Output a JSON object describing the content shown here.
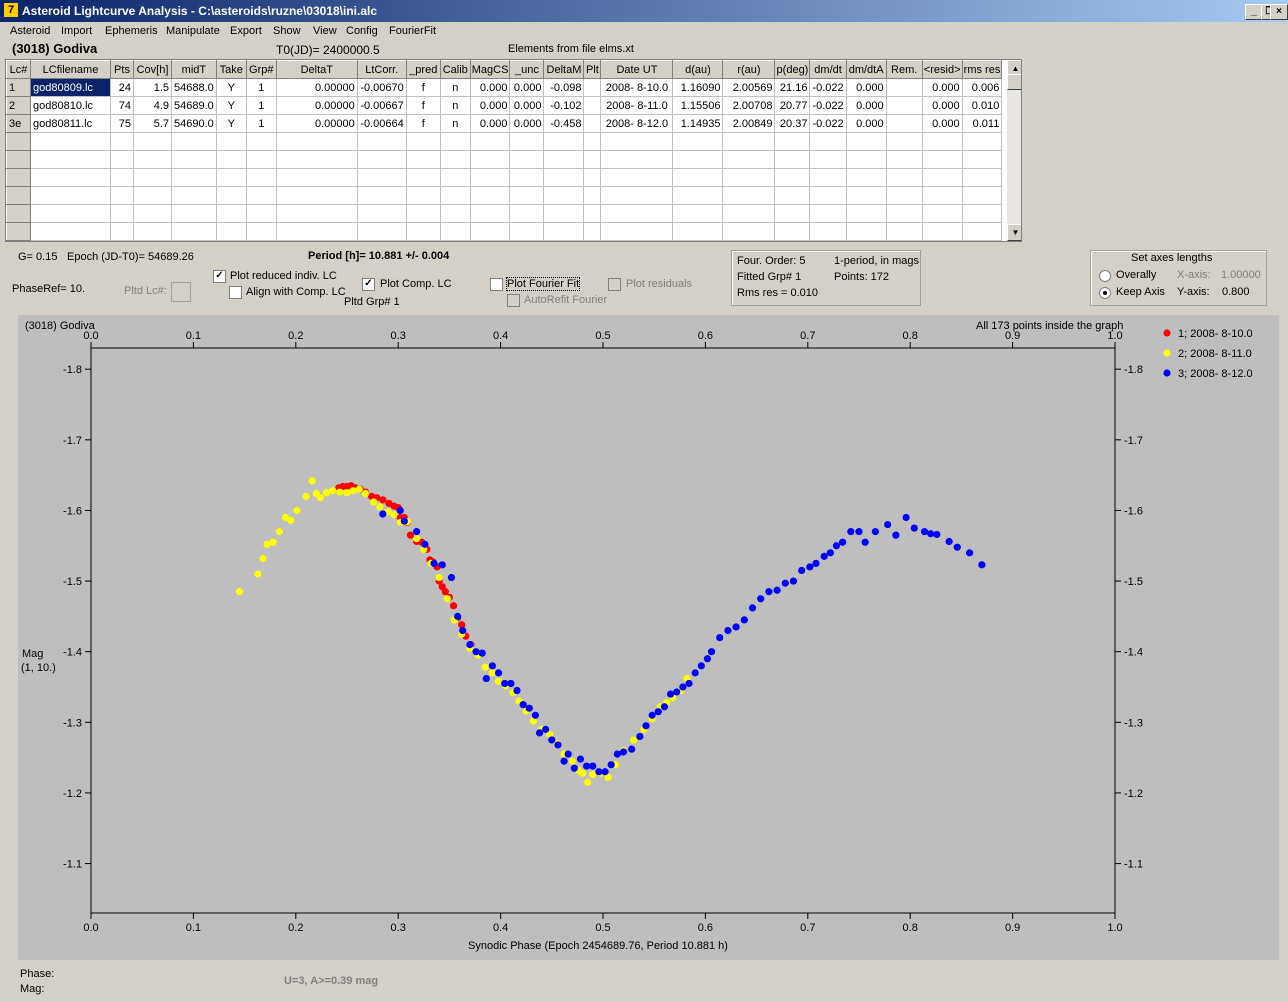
{
  "window": {
    "title": "Asteroid Lightcurve Analysis - C:\\asteroids\\ruzne\\03018\\ini.alc",
    "icon_glyph": "7",
    "buttons": [
      "_",
      "❐",
      "×"
    ]
  },
  "menu": [
    "Asteroid",
    "Import",
    "Ephemeris",
    "Manipulate",
    "Export",
    "Show",
    "View",
    "Config",
    "FourierFit"
  ],
  "header": {
    "asteroid_name": "(3018) Godiva",
    "t0": "T0(JD)= 2400000.5",
    "elements": "Elements from file elms.xt"
  },
  "grid": {
    "columns": [
      "Lc#",
      "LCfilename",
      "Pts",
      "Cov[h]",
      "midT",
      "Take",
      "Grp#",
      "DeltaT",
      "LtCorr.",
      "_pred",
      "Calib",
      "MagCS",
      "_unc",
      "DeltaM",
      "Plt",
      "Date UT",
      "d(au)",
      "r(au)",
      "p(deg)",
      "dm/dt",
      "dm/dtA",
      "Rem.",
      "<resid>",
      "rms res"
    ],
    "rows": [
      [
        "1",
        "god80809.lc",
        "24",
        "1.5",
        "54688.0",
        "Y",
        "1",
        "0.00000",
        "-0.00670",
        "f",
        "n",
        "0.000",
        "0.000",
        "-0.098",
        "",
        "2008- 8-10.0",
        "1.16090",
        "2.00569",
        "21.16",
        "-0.022",
        "0.000",
        "",
        "0.000",
        "0.006"
      ],
      [
        "2",
        "god80810.lc",
        "74",
        "4.9",
        "54689.0",
        "Y",
        "1",
        "0.00000",
        "-0.00667",
        "f",
        "n",
        "0.000",
        "0.000",
        "-0.102",
        "",
        "2008- 8-11.0",
        "1.15506",
        "2.00708",
        "20.77",
        "-0.022",
        "0.000",
        "",
        "0.000",
        "0.010"
      ],
      [
        "3e",
        "god80811.lc",
        "75",
        "5.7",
        "54690.0",
        "Y",
        "1",
        "0.00000",
        "-0.00664",
        "f",
        "n",
        "0.000",
        "0.000",
        "-0.458",
        "",
        "2008- 8-12.0",
        "1.14935",
        "2.00849",
        "20.37",
        "-0.022",
        "0.000",
        "",
        "0.000",
        "0.011"
      ]
    ],
    "empty_rows": 6,
    "scroll_up": "▲",
    "scroll_down": "▼"
  },
  "info": {
    "g_value": "G= 0.15",
    "epoch": "Epoch (JD-T0)= 54689.26",
    "period": "Period [h]= 10.881 +/- 0.004",
    "phase_ref": "PhaseRef= 10.",
    "pltd_lc": "Pltd Lc#:",
    "plot_reduced": "Plot reduced indiv. LC",
    "align_comp": "Align with Comp. LC",
    "plot_comp": "Plot Comp. LC",
    "pltd_grp": "Pltd Grp#  1",
    "plot_fourier": "Plot Fourier Fit",
    "autorefit": "AutoRefit Fourier",
    "plot_residuals": "Plot residuals",
    "check_mark": "✓"
  },
  "fourier_box": {
    "order": "Four. Order:  5",
    "mode": "1-period, in mags",
    "fitted_grp": "Fitted Grp# 1",
    "points": "Points: 172",
    "rms": "Rms res     = 0.010"
  },
  "axes_box": {
    "title": "Set axes lengths",
    "overally": "Overally",
    "keep_axis": "Keep Axis",
    "x_axis_label": "X-axis:",
    "x_axis_value": "1.00000",
    "y_axis_label": "Y-axis:",
    "y_axis_value": "0.800"
  },
  "chart_data": {
    "type": "scatter",
    "title": "(3018) Godiva",
    "note": "All 173 points inside the graph",
    "xlabel": "Synodic Phase (Epoch 2454689.76, Period 10.881 h)",
    "ylabel": [
      "Mag",
      "(1, 10.)"
    ],
    "xlim": [
      0,
      1
    ],
    "ylim": [
      -1.03,
      -1.83
    ],
    "y_inverted": true,
    "x_ticks": [
      "0.0",
      "0.1",
      "0.2",
      "0.3",
      "0.4",
      "0.5",
      "0.6",
      "0.7",
      "0.8",
      "0.9",
      "1.0"
    ],
    "y_ticks": [
      "-1.8",
      "-1.7",
      "-1.6",
      "-1.5",
      "-1.4",
      "-1.3",
      "-1.2",
      "-1.1"
    ],
    "grid": false,
    "legend_position": "right",
    "series": [
      {
        "name": "1; 2008- 8-10.0",
        "color": "#ff0000",
        "points": [
          [
            0.242,
            -1.632
          ],
          [
            0.246,
            -1.634
          ],
          [
            0.25,
            -1.634
          ],
          [
            0.254,
            -1.635
          ],
          [
            0.258,
            -1.632
          ],
          [
            0.263,
            -1.63
          ],
          [
            0.268,
            -1.626
          ],
          [
            0.274,
            -1.62
          ],
          [
            0.279,
            -1.618
          ],
          [
            0.285,
            -1.615
          ],
          [
            0.291,
            -1.61
          ],
          [
            0.296,
            -1.606
          ],
          [
            0.3,
            -1.604
          ],
          [
            0.302,
            -1.59
          ],
          [
            0.306,
            -1.59
          ],
          [
            0.309,
            -1.583
          ],
          [
            0.312,
            -1.565
          ],
          [
            0.318,
            -1.556
          ],
          [
            0.323,
            -1.555
          ],
          [
            0.328,
            -1.545
          ],
          [
            0.331,
            -1.53
          ],
          [
            0.334,
            -1.527
          ],
          [
            0.338,
            -1.52
          ],
          [
            0.34,
            -1.5
          ],
          [
            0.343,
            -1.492
          ],
          [
            0.346,
            -1.485
          ],
          [
            0.35,
            -1.477
          ],
          [
            0.354,
            -1.465
          ],
          [
            0.358,
            -1.448
          ],
          [
            0.362,
            -1.438
          ],
          [
            0.366,
            -1.422
          ],
          [
            0.371,
            -1.41
          ]
        ]
      },
      {
        "name": "2; 2008- 8-11.0",
        "color": "#ffff00",
        "points": [
          [
            0.145,
            -1.485
          ],
          [
            0.163,
            -1.51
          ],
          [
            0.168,
            -1.532
          ],
          [
            0.172,
            -1.552
          ],
          [
            0.178,
            -1.555
          ],
          [
            0.184,
            -1.57
          ],
          [
            0.19,
            -1.59
          ],
          [
            0.195,
            -1.586
          ],
          [
            0.201,
            -1.6
          ],
          [
            0.21,
            -1.62
          ],
          [
            0.216,
            -1.642
          ],
          [
            0.22,
            -1.624
          ],
          [
            0.224,
            -1.618
          ],
          [
            0.23,
            -1.625
          ],
          [
            0.236,
            -1.628
          ],
          [
            0.243,
            -1.626
          ],
          [
            0.25,
            -1.625
          ],
          [
            0.256,
            -1.628
          ],
          [
            0.262,
            -1.63
          ],
          [
            0.268,
            -1.624
          ],
          [
            0.276,
            -1.612
          ],
          [
            0.282,
            -1.605
          ],
          [
            0.29,
            -1.598
          ],
          [
            0.296,
            -1.594
          ],
          [
            0.302,
            -1.583
          ],
          [
            0.309,
            -1.584
          ],
          [
            0.318,
            -1.56
          ],
          [
            0.325,
            -1.545
          ],
          [
            0.332,
            -1.525
          ],
          [
            0.34,
            -1.505
          ],
          [
            0.348,
            -1.475
          ],
          [
            0.355,
            -1.445
          ],
          [
            0.362,
            -1.425
          ],
          [
            0.37,
            -1.405
          ],
          [
            0.378,
            -1.395
          ],
          [
            0.385,
            -1.378
          ],
          [
            0.392,
            -1.37
          ],
          [
            0.398,
            -1.358
          ],
          [
            0.405,
            -1.352
          ],
          [
            0.412,
            -1.342
          ],
          [
            0.418,
            -1.33
          ],
          [
            0.425,
            -1.316
          ],
          [
            0.432,
            -1.302
          ],
          [
            0.44,
            -1.29
          ],
          [
            0.448,
            -1.283
          ],
          [
            0.455,
            -1.27
          ],
          [
            0.462,
            -1.255
          ],
          [
            0.47,
            -1.245
          ],
          [
            0.476,
            -1.232
          ],
          [
            0.48,
            -1.228
          ],
          [
            0.485,
            -1.215
          ],
          [
            0.49,
            -1.226
          ],
          [
            0.498,
            -1.228
          ],
          [
            0.505,
            -1.222
          ],
          [
            0.512,
            -1.24
          ],
          [
            0.52,
            -1.26
          ],
          [
            0.53,
            -1.275
          ],
          [
            0.54,
            -1.29
          ],
          [
            0.548,
            -1.305
          ],
          [
            0.556,
            -1.322
          ],
          [
            0.562,
            -1.328
          ],
          [
            0.568,
            -1.335
          ],
          [
            0.576,
            -1.345
          ],
          [
            0.582,
            -1.362
          ]
        ]
      },
      {
        "name": "3; 2008- 8-12.0",
        "color": "#0000ff",
        "points": [
          [
            0.285,
            -1.595
          ],
          [
            0.302,
            -1.6
          ],
          [
            0.306,
            -1.585
          ],
          [
            0.318,
            -1.57
          ],
          [
            0.326,
            -1.552
          ],
          [
            0.335,
            -1.525
          ],
          [
            0.343,
            -1.523
          ],
          [
            0.352,
            -1.505
          ],
          [
            0.358,
            -1.45
          ],
          [
            0.363,
            -1.43
          ],
          [
            0.37,
            -1.41
          ],
          [
            0.376,
            -1.4
          ],
          [
            0.382,
            -1.398
          ],
          [
            0.386,
            -1.362
          ],
          [
            0.392,
            -1.38
          ],
          [
            0.398,
            -1.37
          ],
          [
            0.404,
            -1.355
          ],
          [
            0.41,
            -1.355
          ],
          [
            0.416,
            -1.345
          ],
          [
            0.422,
            -1.325
          ],
          [
            0.428,
            -1.32
          ],
          [
            0.434,
            -1.31
          ],
          [
            0.438,
            -1.285
          ],
          [
            0.444,
            -1.29
          ],
          [
            0.45,
            -1.275
          ],
          [
            0.456,
            -1.268
          ],
          [
            0.462,
            -1.245
          ],
          [
            0.466,
            -1.255
          ],
          [
            0.472,
            -1.235
          ],
          [
            0.478,
            -1.248
          ],
          [
            0.484,
            -1.238
          ],
          [
            0.49,
            -1.238
          ],
          [
            0.496,
            -1.23
          ],
          [
            0.502,
            -1.23
          ],
          [
            0.508,
            -1.24
          ],
          [
            0.514,
            -1.255
          ],
          [
            0.52,
            -1.258
          ],
          [
            0.528,
            -1.262
          ],
          [
            0.536,
            -1.28
          ],
          [
            0.542,
            -1.295
          ],
          [
            0.548,
            -1.31
          ],
          [
            0.554,
            -1.315
          ],
          [
            0.56,
            -1.322
          ],
          [
            0.566,
            -1.34
          ],
          [
            0.572,
            -1.343
          ],
          [
            0.578,
            -1.35
          ],
          [
            0.584,
            -1.355
          ],
          [
            0.59,
            -1.37
          ],
          [
            0.596,
            -1.38
          ],
          [
            0.602,
            -1.39
          ],
          [
            0.606,
            -1.4
          ],
          [
            0.614,
            -1.42
          ],
          [
            0.622,
            -1.43
          ],
          [
            0.63,
            -1.435
          ],
          [
            0.638,
            -1.445
          ],
          [
            0.646,
            -1.462
          ],
          [
            0.654,
            -1.475
          ],
          [
            0.662,
            -1.485
          ],
          [
            0.67,
            -1.487
          ],
          [
            0.678,
            -1.497
          ],
          [
            0.686,
            -1.5
          ],
          [
            0.694,
            -1.515
          ],
          [
            0.702,
            -1.52
          ],
          [
            0.708,
            -1.525
          ],
          [
            0.716,
            -1.535
          ],
          [
            0.722,
            -1.54
          ],
          [
            0.728,
            -1.55
          ],
          [
            0.734,
            -1.555
          ],
          [
            0.742,
            -1.57
          ],
          [
            0.75,
            -1.57
          ],
          [
            0.756,
            -1.555
          ],
          [
            0.766,
            -1.57
          ],
          [
            0.778,
            -1.58
          ],
          [
            0.786,
            -1.565
          ],
          [
            0.796,
            -1.59
          ],
          [
            0.804,
            -1.575
          ],
          [
            0.814,
            -1.57
          ],
          [
            0.82,
            -1.567
          ],
          [
            0.826,
            -1.566
          ],
          [
            0.838,
            -1.556
          ],
          [
            0.846,
            -1.548
          ],
          [
            0.858,
            -1.54
          ],
          [
            0.87,
            -1.523
          ]
        ]
      }
    ]
  },
  "status": {
    "phase_label": "Phase:",
    "mag_label": "Mag:",
    "fourier_info": "U=3, A>=0.39 mag"
  }
}
